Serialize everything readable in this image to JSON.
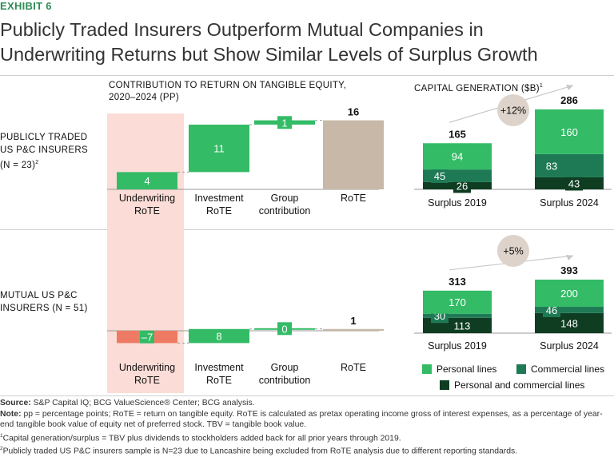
{
  "header": {
    "exhibit": "EXHIBIT 6",
    "title_line1": "Publicly Traded Insurers Outperform Mutual Companies in",
    "title_line2": "Underwriting Returns but Show Similar Levels of Surplus Growth"
  },
  "sections": {
    "rote_title_line1": "CONTRIBUTION TO RETURN ON TANGIBLE EQUITY,",
    "rote_title_line2": "2020–2024 (PP)",
    "capital_title": "CAPITAL GENERATION ($B)",
    "capital_footnote_mark": "1"
  },
  "rows": {
    "public_line1": "PUBLICLY TRADED",
    "public_line2": "US P&C INSURERS",
    "public_line3": "(N = 23)",
    "public_footnote_mark": "2",
    "mutual_line1": "MUTUAL US P&C",
    "mutual_line2": "INSURERS (N = 51)"
  },
  "colors": {
    "green_light": "#33bb66",
    "green_mid": "#1e7a55",
    "green_dark": "#0f3d22",
    "negative": "#ef7a63",
    "total": "#c8b8a7",
    "highlight": "#fbdcd6",
    "badge": "#ddd3ca"
  },
  "legend": {
    "personal": "Personal lines",
    "commercial": "Commercial lines",
    "both": "Personal and commercial lines"
  },
  "chart_data": [
    {
      "id": "rote_public",
      "type": "bar",
      "subtype": "waterfall",
      "title": "CONTRIBUTION TO RETURN ON TANGIBLE EQUITY, 2020–2024 (PP)",
      "row": "PUBLICLY TRADED US P&C INSURERS (N = 23)",
      "categories": [
        "Underwriting RoTE",
        "Investment RoTE",
        "Group contribution",
        "RoTE"
      ],
      "category_lines": [
        [
          "Underwriting",
          "RoTE"
        ],
        [
          "Investment",
          "RoTE"
        ],
        [
          "Group",
          "contribution"
        ],
        [
          "RoTE"
        ]
      ],
      "values": [
        4,
        11,
        1,
        16
      ],
      "labels": [
        "4",
        "11",
        "1",
        "16"
      ],
      "is_total": [
        false,
        false,
        false,
        true
      ]
    },
    {
      "id": "rote_mutual",
      "type": "bar",
      "subtype": "waterfall",
      "row": "MUTUAL US P&C INSURERS (N = 51)",
      "categories": [
        "Underwriting RoTE",
        "Investment RoTE",
        "Group contribution",
        "RoTE"
      ],
      "category_lines": [
        [
          "Underwriting",
          "RoTE"
        ],
        [
          "Investment",
          "RoTE"
        ],
        [
          "Group",
          "contribution"
        ],
        [
          "RoTE"
        ]
      ],
      "values": [
        -7,
        8,
        0,
        1
      ],
      "labels": [
        "–7",
        "8",
        "0",
        "1"
      ],
      "is_total": [
        false,
        false,
        false,
        true
      ]
    },
    {
      "id": "capital_public",
      "type": "bar",
      "subtype": "stacked",
      "title": "CAPITAL GENERATION ($B)",
      "row": "PUBLICLY TRADED US P&C INSURERS (N = 23)",
      "categories": [
        "Surplus 2019",
        "Surplus 2024"
      ],
      "series": [
        {
          "name": "Personal and commercial lines",
          "values": [
            26,
            43
          ]
        },
        {
          "name": "Commercial lines",
          "values": [
            45,
            83
          ]
        },
        {
          "name": "Personal lines",
          "values": [
            94,
            160
          ]
        }
      ],
      "totals": [
        165,
        286
      ],
      "growth_label": "+12%"
    },
    {
      "id": "capital_mutual",
      "type": "bar",
      "subtype": "stacked",
      "row": "MUTUAL US P&C INSURERS (N = 51)",
      "categories": [
        "Surplus 2019",
        "Surplus 2024"
      ],
      "series": [
        {
          "name": "Personal and commercial lines",
          "values": [
            113,
            148
          ]
        },
        {
          "name": "Commercial lines",
          "values": [
            30,
            46
          ]
        },
        {
          "name": "Personal lines",
          "values": [
            170,
            200
          ]
        }
      ],
      "totals": [
        313,
        393
      ],
      "growth_label": "+5%"
    }
  ],
  "footer": {
    "source_label": "Source:",
    "source_text": "S&P Capital IQ; BCG ValueScience® Center; BCG analysis.",
    "note_label": "Note:",
    "note_text": "pp = percentage points; RoTE = return on tangible equity. RoTE is calculated as pretax operating income gross of interest expenses, as a percentage of year-end tangible book value of equity net of preferred stock. TBV = tangible book value.",
    "fn1_mark": "1",
    "fn1_text": "Capital generation/surplus = TBV plus dividends to stockholders added back for all prior years through 2019.",
    "fn2_mark": "2",
    "fn2_text": "Publicly traded US P&C insurers sample is N=23 due to Lancashire being excluded from RoTE analysis due to different reporting standards."
  }
}
